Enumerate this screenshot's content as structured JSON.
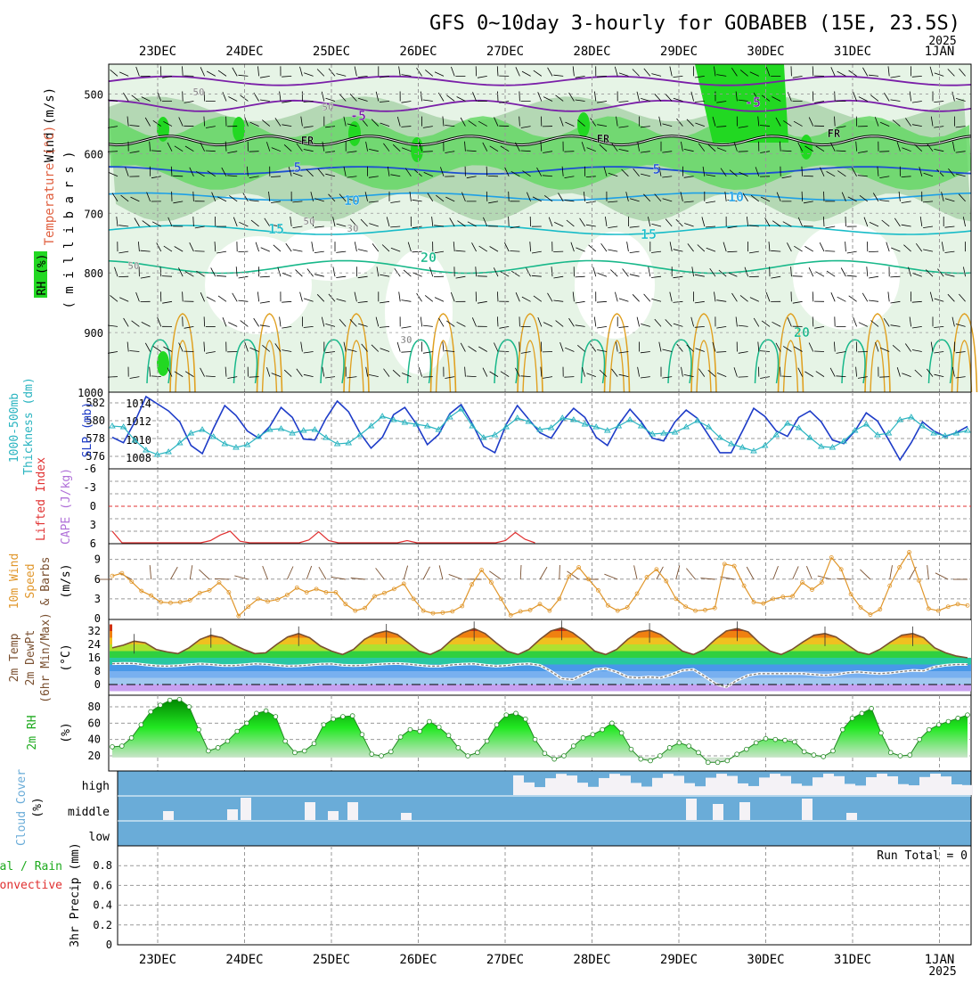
{
  "title": "GFS 0~10day 3-hourly for GOBABEB (15E, 23.5S)",
  "year_top": "2025",
  "year_bottom": "2025",
  "dates": [
    "23DEC",
    "24DEC",
    "25DEC",
    "26DEC",
    "27DEC",
    "28DEC",
    "29DEC",
    "30DEC",
    "31DEC",
    "1JAN"
  ],
  "colors": {
    "temp_zero": "#7a1fa8",
    "temp_5": "#1e50d0",
    "temp_10": "#1ea0e6",
    "temp_15": "#18bcc8",
    "temp_20": "#18b88a",
    "temp_warm": "#e0a020",
    "rh_light": "#e6f4e6",
    "rh_mid": "#b4d8b4",
    "rh_green": "#66d866",
    "rh_bright": "#22d822",
    "slp": "#1e3cc8",
    "thickness": "#2ab4c0",
    "cape_li": "#e03030",
    "wind": "#e0962a",
    "temp_line": "#7a5030",
    "dewpoint": "#808080",
    "rh2m": "#1eaa1e",
    "cloud_bg": "#6aacd8",
    "cloud_fg": "#f4f2f6"
  },
  "panels": {
    "upper_air": {
      "ylabel_wind": "Wind (m/s)",
      "ylabel_temp": "Temperature (°C)",
      "ylabel_rh": "RH (%)",
      "ylabel_units": "( m i l l i b a r s )",
      "ticks": [
        "500",
        "600",
        "700",
        "800",
        "900",
        "1000"
      ],
      "contour_labels": [
        "-5",
        "-5",
        "FR",
        "FR",
        "FR",
        "5",
        "5",
        "10",
        "10",
        "15",
        "15",
        "20",
        "20",
        "50",
        "50",
        "30",
        "50",
        "50",
        "30"
      ]
    },
    "slp_thickness": {
      "ylabel_left": "1000-500mb",
      "ylabel_left2": "Thickness (dm)",
      "ylabel_right": "SLP (mb)",
      "ticks_left": [
        "582",
        "580",
        "578",
        "576"
      ],
      "ticks_right": [
        "1014",
        "1012",
        "1010",
        "1008"
      ]
    },
    "cape_li": {
      "ylabel_li": "Lifted Index",
      "ylabel_cape": "CAPE (J/kg)",
      "ticks": [
        "-6",
        "-3",
        "0",
        "3",
        "6"
      ]
    },
    "wind10m": {
      "ylabel_a": "10m Wind",
      "ylabel_b": "Speed",
      "ylabel_c": "& Barbs",
      "units": "(m/s)",
      "ticks": [
        "9",
        "6",
        "3",
        "0"
      ]
    },
    "temp2m": {
      "ylabel_a": "2m Temp",
      "ylabel_b": "2m DewPt",
      "ylabel_c": "(6hr Min/Max)",
      "units": "(°C)",
      "ticks": [
        "32",
        "24",
        "16",
        "8",
        "0"
      ]
    },
    "rh2m": {
      "ylabel": "2m RH",
      "units": "(%)",
      "ticks": [
        "80",
        "60",
        "40",
        "20"
      ]
    },
    "cloud": {
      "ylabel": "Cloud Cover",
      "units": "(%)",
      "levels": [
        "high",
        "middle",
        "low"
      ]
    },
    "precip": {
      "ylabel_total": "Total / Rain",
      "ylabel_conv": "Convective",
      "ylabel_axis": "3hr Precip (mm)",
      "run_total": "Run Total = 0",
      "ticks": [
        "0.8",
        "0.6",
        "0.4",
        "0.2",
        "0"
      ]
    }
  },
  "chart_data": {
    "type": "line",
    "title": "GFS 0~10day 3-hourly for GOBABEB (15E, 23.5S)",
    "x_hours_step": 3,
    "x_start": "22DEC 12Z",
    "slp_mb": [
      1010.3,
      1009.7,
      1012.0,
      1014.8,
      1014.0,
      1013.2,
      1012.0,
      1009.4,
      1008.5,
      1011.3,
      1013.8,
      1012.7,
      1011.0,
      1010.2,
      1011.5,
      1013.6,
      1012.5,
      1010.1,
      1010.0,
      1012.4,
      1014.3,
      1013.1,
      1010.8,
      1009.1,
      1010.3,
      1012.8,
      1013.6,
      1011.8,
      1009.5,
      1010.6,
      1012.9,
      1013.9,
      1011.8,
      1009.3,
      1008.6,
      1011.7,
      1013.8,
      1012.3,
      1010.8,
      1010.2,
      1012.1,
      1013.5,
      1012.5,
      1010.3,
      1009.4,
      1011.7,
      1013.4,
      1012.0,
      1010.2,
      1009.9,
      1012.0,
      1013.3,
      1012.4,
      1010.5,
      1008.6,
      1008.6,
      1011.0,
      1013.5,
      1012.6,
      1011.0,
      1010.4,
      1012.5,
      1013.2,
      1012.0,
      1010.0,
      1009.6,
      1011.0,
      1013.0,
      1012.1,
      1010.0,
      1007.8,
      1009.7,
      1012.0,
      1011.0,
      1010.4,
      1010.8,
      1011.5
    ],
    "thickness_dm": [
      579.4,
      579.3,
      577.8,
      576.7,
      576.2,
      576.5,
      577.5,
      578.6,
      579.0,
      578.2,
      577.4,
      577.0,
      577.3,
      578.2,
      579.0,
      579.1,
      578.6,
      578.9,
      579.0,
      578.1,
      577.4,
      577.5,
      578.4,
      579.4,
      580.5,
      580.1,
      579.8,
      579.6,
      579.4,
      579.0,
      580.4,
      581.3,
      579.4,
      578.1,
      578.4,
      579.3,
      580.3,
      579.9,
      579.0,
      579.2,
      580.3,
      580.1,
      579.6,
      579.3,
      578.9,
      579.4,
      580.1,
      579.4,
      578.5,
      578.6,
      578.7,
      579.3,
      580.0,
      579.3,
      578.1,
      577.4,
      577.0,
      576.6,
      577.2,
      578.4,
      579.7,
      579.2,
      578.1,
      577.1,
      577.0,
      577.7,
      578.9,
      579.6,
      578.4,
      578.6,
      580.1,
      580.4,
      579.4,
      578.6,
      578.3,
      578.6,
      578.9
    ],
    "lifted_index": [
      4.0,
      6.2,
      6.5,
      6.5,
      6.5,
      6.5,
      6.5,
      6.5,
      6.5,
      6.5,
      5.5,
      4.6,
      4.0,
      5.6,
      6.5,
      6.5,
      6.5,
      6.5,
      6.5,
      6.5,
      5.4,
      4.1,
      5.5,
      6.5,
      6.5,
      6.5,
      6.5,
      6.5,
      6.5,
      6.5,
      5.5,
      6.5,
      6.5,
      6.5,
      6.5,
      6.5,
      6.5,
      6.5,
      6.5,
      6.5,
      5.5,
      4.2,
      5.3,
      6.5
    ],
    "wind_speed": [
      6.5,
      6.9,
      5.6,
      4.2,
      3.5,
      2.5,
      2.4,
      2.5,
      2.8,
      3.9,
      4.3,
      5.5,
      4.0,
      0.4,
      1.8,
      3.0,
      2.6,
      2.9,
      3.6,
      4.7,
      4.0,
      4.5,
      4.0,
      4.0,
      2.2,
      1.2,
      1.6,
      3.4,
      3.9,
      4.5,
      5.3,
      3.0,
      1.2,
      0.8,
      0.9,
      1.1,
      1.9,
      5.2,
      7.4,
      5.5,
      3.0,
      0.5,
      1.1,
      1.3,
      2.2,
      1.2,
      3.0,
      6.4,
      7.8,
      6.0,
      4.3,
      2.0,
      1.2,
      1.7,
      3.8,
      6.3,
      7.5,
      5.7,
      3.0,
      1.8,
      1.2,
      1.3,
      1.6,
      8.3,
      8.0,
      5.0,
      2.5,
      2.3,
      3.0,
      3.3,
      3.4,
      5.5,
      4.4,
      5.5,
      9.3,
      7.5,
      3.7,
      1.7,
      0.6,
      1.4,
      5.0,
      7.8,
      10.1,
      5.8,
      1.5,
      1.2,
      1.8,
      2.2,
      2.0
    ],
    "temp_2m": [
      22,
      23.5,
      26,
      25,
      21,
      19.5,
      18.5,
      22,
      27,
      29.5,
      28,
      24,
      21,
      18.5,
      19,
      24,
      28.5,
      30.5,
      28,
      23,
      20,
      18,
      21,
      27,
      30.5,
      32,
      30,
      25,
      20,
      18,
      21,
      27,
      31,
      33.5,
      30.5,
      25,
      20,
      18,
      21,
      27,
      32,
      34,
      31,
      26,
      20,
      18,
      21,
      27,
      31.5,
      32.5,
      30,
      25,
      20,
      18,
      21,
      27,
      32,
      33.5,
      31.5,
      25,
      20,
      18,
      21,
      25.5,
      29.5,
      30.5,
      28.5,
      24,
      19.5,
      18,
      21,
      25.5,
      29.5,
      30.5,
      28,
      22,
      19,
      17,
      16
    ],
    "dewpoint_2m": [
      12.5,
      12.7,
      12.6,
      11.8,
      11.2,
      11.0,
      11.3,
      11.9,
      12.3,
      12.0,
      11.4,
      11.3,
      11.8,
      12.4,
      12.1,
      11.5,
      11.0,
      11.2,
      11.7,
      12.2,
      12.3,
      11.6,
      11.3,
      11.5,
      12.0,
      12.4,
      12.6,
      12.2,
      11.5,
      11.0,
      11.1,
      11.8,
      12.2,
      12.4,
      11.6,
      11.0,
      11.4,
      12.1,
      12.4,
      11.5,
      8.0,
      3.5,
      3.0,
      6.0,
      9.0,
      9.5,
      7.5,
      4.5,
      4.0,
      4.5,
      4.0,
      6.0,
      8.5,
      9.0,
      5.0,
      0.5,
      -1.5,
      2.5,
      5.5,
      6.5,
      6.5,
      6.5,
      6.5,
      6.5,
      6.0,
      5.5,
      6.0,
      7.0,
      7.5,
      7.0,
      6.5,
      7.0,
      7.8,
      8.5,
      8.2,
      10.5,
      11.5,
      12.0,
      12.0
    ],
    "rh_2m": [
      31,
      32,
      42,
      58,
      74,
      82,
      88,
      89,
      80,
      52,
      26,
      30,
      38,
      50,
      60,
      72,
      75,
      68,
      38,
      24,
      26,
      35,
      58,
      65,
      68,
      69,
      46,
      22,
      20,
      25,
      43,
      52,
      50,
      62,
      55,
      45,
      30,
      20,
      24,
      38,
      58,
      70,
      72,
      65,
      40,
      23,
      16,
      20,
      32,
      42,
      46,
      52,
      60,
      48,
      28,
      16,
      14,
      20,
      30,
      36,
      32,
      24,
      12,
      12,
      14,
      22,
      28,
      36,
      41,
      40,
      39,
      37,
      25,
      21,
      19,
      26,
      52,
      66,
      72,
      78,
      48,
      24,
      20,
      21,
      40,
      52,
      58,
      62,
      66,
      70
    ]
  }
}
